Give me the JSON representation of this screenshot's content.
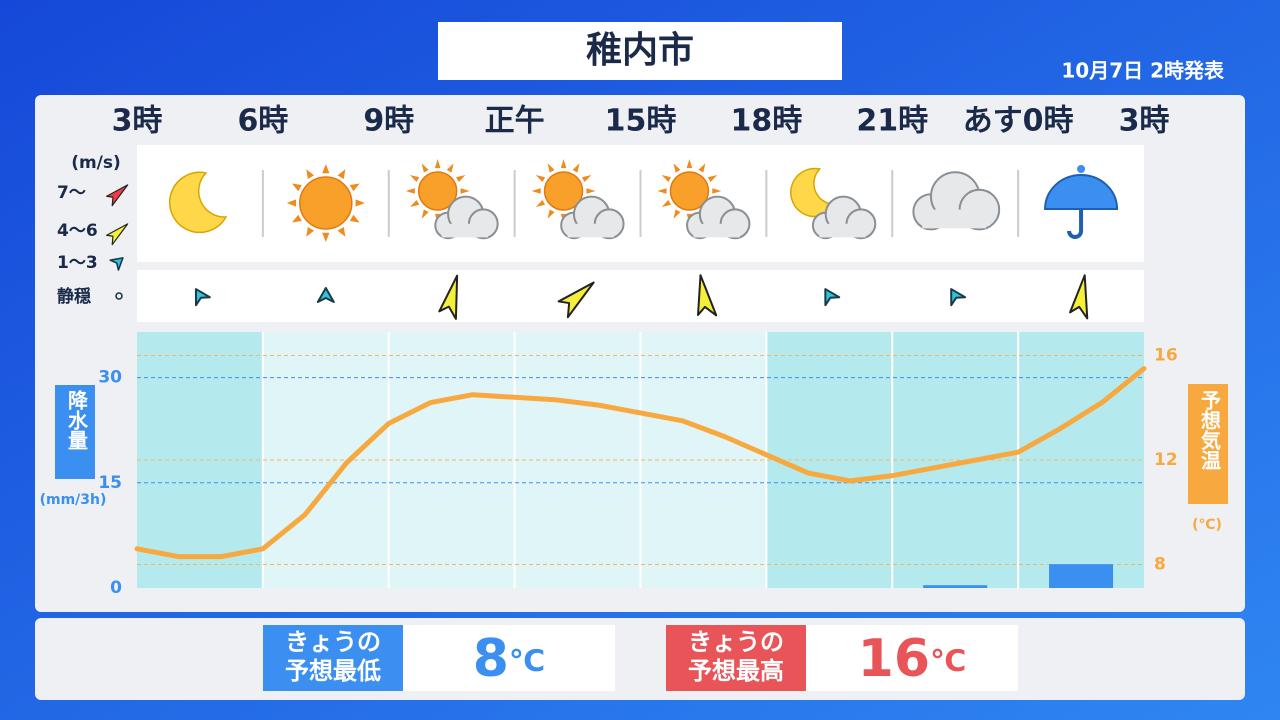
{
  "header": {
    "title": "稚内市",
    "issued": "10月7日 2時発表"
  },
  "wind_legend": {
    "unit": "(m/s)",
    "levels": [
      "7〜",
      "4〜6",
      "1〜3",
      "静穏"
    ]
  },
  "chart_data": {
    "type": "line",
    "xlim": [
      3,
      27
    ],
    "xticks": [
      {
        "value": 3,
        "label": "3時"
      },
      {
        "value": 6,
        "label": "6時"
      },
      {
        "value": 9,
        "label": "9時"
      },
      {
        "value": 12,
        "label": "正午"
      },
      {
        "value": 15,
        "label": "15時"
      },
      {
        "value": 18,
        "label": "18時"
      },
      {
        "value": 21,
        "label": "21時"
      },
      {
        "value": 24,
        "label": "あす0時"
      },
      {
        "value": 27,
        "label": "3時"
      }
    ],
    "ylim": [
      0,
      36.5
    ],
    "yticks": [
      0,
      15,
      30
    ],
    "ylabel_unit": "(mm/3h)",
    "y2lim": [
      7.1,
      16.9
    ],
    "y2ticks": [
      8,
      12,
      16
    ],
    "y2label_unit": "(℃)",
    "grid": true,
    "series": [
      {
        "name": "降水量",
        "type": "bar",
        "color": "#3a8ff0",
        "x": [
          4.5,
          7.5,
          10.5,
          13.5,
          16.5,
          19.5,
          22.5,
          25.5
        ],
        "values": [
          0,
          0,
          0,
          0,
          0,
          0,
          0.4,
          3.4
        ]
      },
      {
        "name": "予想気温",
        "type": "line",
        "axis": "y2",
        "color": "#f7a940",
        "x": [
          3,
          4,
          5,
          6,
          7,
          8,
          9,
          10,
          11,
          12,
          13,
          14,
          15,
          16,
          17,
          18,
          19,
          20,
          21,
          22,
          23,
          24,
          25,
          26,
          27
        ],
        "values": [
          8.6,
          8.3,
          8.3,
          8.6,
          9.9,
          11.9,
          13.4,
          14.2,
          14.5,
          14.4,
          14.3,
          14.1,
          13.8,
          13.5,
          12.9,
          12.2,
          11.5,
          11.2,
          11.4,
          11.7,
          12.0,
          12.3,
          13.2,
          14.2,
          15.5
        ]
      }
    ]
  },
  "summary": {
    "low": {
      "label": [
        "きょうの",
        "予想最低"
      ],
      "value": 8,
      "unit": "℃"
    },
    "high": {
      "label": [
        "きょうの",
        "予想最高"
      ],
      "value": 16,
      "unit": "℃"
    }
  }
}
